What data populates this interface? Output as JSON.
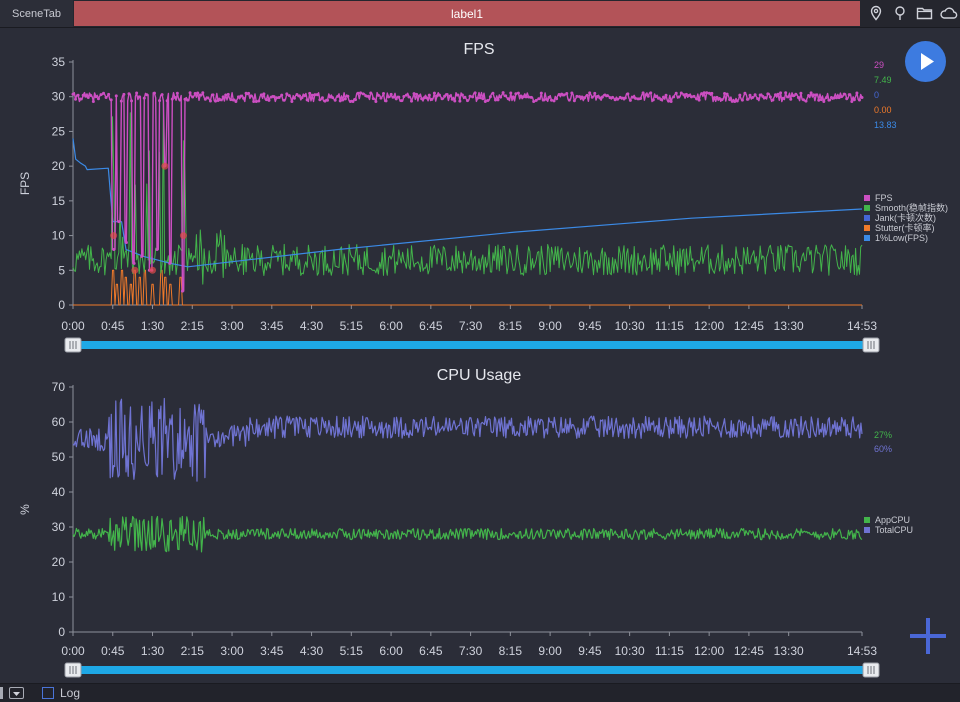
{
  "topbar": {
    "scene_tab": "SceneTab",
    "active_label": "label1",
    "icons": [
      "location-icon",
      "pin-icon",
      "folder-icon",
      "cloud-icon"
    ]
  },
  "colors": {
    "fps": "#cc4fc2",
    "smooth": "#43b44b",
    "jank": "#4466d4",
    "stutter": "#f07a2a",
    "low1": "#3b8ae6",
    "appcpu": "#43b44b",
    "totalcpu": "#6f73d2",
    "slider": "#1ea8e6"
  },
  "time_ticks": [
    "0:00",
    "0:45",
    "1:30",
    "2:15",
    "3:00",
    "3:45",
    "4:30",
    "5:15",
    "6:00",
    "6:45",
    "7:30",
    "8:15",
    "9:00",
    "9:45",
    "10:30",
    "11:15",
    "12:00",
    "12:45",
    "13:30",
    "14:53"
  ],
  "chart_data": [
    {
      "type": "line",
      "title": "FPS",
      "ylabel": "FPS",
      "xlabel": "",
      "ylim": [
        0,
        35
      ],
      "yticks": [
        0,
        5,
        10,
        15,
        20,
        25,
        30,
        35
      ],
      "x_range_seconds": [
        0,
        893
      ],
      "grid": false,
      "legend_position": "right",
      "legend": [
        {
          "name": "FPS",
          "color": "#cc4fc2"
        },
        {
          "name": "Smooth(稳帧指数)",
          "color": "#43b44b"
        },
        {
          "name": "Jank(卡顿次数)",
          "color": "#4466d4"
        },
        {
          "name": "Stutter(卡顿率)",
          "color": "#f07a2a"
        },
        {
          "name": "1%Low(FPS)",
          "color": "#3b8ae6"
        }
      ],
      "current_values": [
        {
          "value": "29",
          "color": "#cc4fc2"
        },
        {
          "value": "7.49",
          "color": "#43b44b"
        },
        {
          "value": "0",
          "color": "#4466d4"
        },
        {
          "value": "0.00",
          "color": "#f07a2a"
        },
        {
          "value": "13.83",
          "color": "#3b8ae6"
        }
      ],
      "series": [
        {
          "name": "FPS",
          "typical": 30,
          "range": [
            29,
            30.5
          ],
          "drops": [
            [
              46,
              8
            ],
            [
              52,
              12
            ],
            [
              60,
              9
            ],
            [
              68,
              6
            ],
            [
              78,
              7
            ],
            [
              88,
              5
            ],
            [
              96,
              8
            ],
            [
              104,
              20
            ],
            [
              110,
              6
            ],
            [
              125,
              2
            ]
          ]
        },
        {
          "name": "Smooth(稳帧指数)",
          "typical": 6.5,
          "range": [
            3,
            9
          ]
        },
        {
          "name": "1%Low(FPS)",
          "points": [
            [
              0,
              24
            ],
            [
              3,
              21
            ],
            [
              8,
              20.5
            ],
            [
              14,
              20
            ],
            [
              16,
              19.5
            ],
            [
              40,
              19.7
            ],
            [
              45,
              12
            ],
            [
              55,
              12
            ],
            [
              60,
              8
            ],
            [
              80,
              7
            ],
            [
              110,
              6
            ],
            [
              130,
              5.5
            ],
            [
              300,
              8
            ],
            [
              500,
              10.5
            ],
            [
              700,
              12.5
            ],
            [
              893,
              13.83
            ]
          ]
        },
        {
          "name": "Stutter(卡顿率)",
          "typical": 0,
          "spikes": [
            [
              46,
              5
            ],
            [
              50,
              3
            ],
            [
              55,
              5
            ],
            [
              60,
              4
            ],
            [
              65,
              3
            ],
            [
              70,
              5
            ],
            [
              76,
              4
            ],
            [
              82,
              5
            ],
            [
              90,
              3
            ],
            [
              100,
              5
            ],
            [
              105,
              4
            ],
            [
              110,
              3
            ],
            [
              122,
              4
            ]
          ]
        }
      ]
    },
    {
      "type": "line",
      "title": "CPU Usage",
      "ylabel": "%",
      "xlabel": "",
      "ylim": [
        0,
        70
      ],
      "yticks": [
        0,
        10,
        20,
        30,
        40,
        50,
        60,
        70
      ],
      "x_range_seconds": [
        0,
        893
      ],
      "grid": false,
      "legend_position": "right",
      "legend": [
        {
          "name": "AppCPU",
          "color": "#43b44b"
        },
        {
          "name": "TotalCPU",
          "color": "#6f73d2"
        }
      ],
      "current_values": [
        {
          "value": "27%",
          "color": "#43b44b"
        },
        {
          "value": "60%",
          "color": "#6f73d2"
        }
      ],
      "series": [
        {
          "name": "AppCPU",
          "typical": 28,
          "range": [
            16,
            33
          ]
        },
        {
          "name": "TotalCPU",
          "typical": 58,
          "range": [
            42,
            67
          ]
        }
      ]
    }
  ],
  "bottom": {
    "log_label": "Log"
  }
}
